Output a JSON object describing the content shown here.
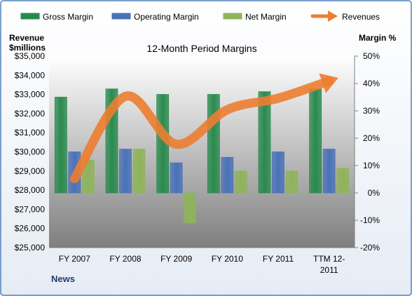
{
  "chart_data": {
    "type": "bar",
    "title": "12-Month Period Margins",
    "footer_label": "News",
    "categories": [
      "FY 2007",
      "FY 2008",
      "FY 2009",
      "FY 2010",
      "FY 2011",
      "TTM 12-2011"
    ],
    "category_lines": [
      [
        "FY 2007"
      ],
      [
        "FY 2008"
      ],
      [
        "FY 2009"
      ],
      [
        "FY 2010"
      ],
      [
        "FY 2011"
      ],
      [
        "TTM 12-",
        "2011"
      ]
    ],
    "y_left": {
      "label_lines": [
        "Revenue",
        "$millions"
      ],
      "range": [
        25000,
        35000
      ],
      "ticks": [
        {
          "value": 25000,
          "label": "$25,000"
        },
        {
          "value": 26000,
          "label": "$26,000"
        },
        {
          "value": 27000,
          "label": "$27,000"
        },
        {
          "value": 28000,
          "label": "$28,000"
        },
        {
          "value": 29000,
          "label": "$29,000"
        },
        {
          "value": 30000,
          "label": "$30,000"
        },
        {
          "value": 31000,
          "label": "$31,000"
        },
        {
          "value": 32000,
          "label": "$32,000"
        },
        {
          "value": 33000,
          "label": "$33,000"
        },
        {
          "value": 34000,
          "label": "$34,000"
        },
        {
          "value": 35000,
          "label": "$35,000"
        }
      ]
    },
    "y_right": {
      "label": "Margin %",
      "range": [
        -20,
        50
      ],
      "ticks": [
        {
          "value": -20,
          "label": "-20%"
        },
        {
          "value": -10,
          "label": "-10%"
        },
        {
          "value": 0,
          "label": "0%"
        },
        {
          "value": 10,
          "label": "10%"
        },
        {
          "value": 20,
          "label": "20%"
        },
        {
          "value": 30,
          "label": "30%"
        },
        {
          "value": 40,
          "label": "40%"
        },
        {
          "value": 50,
          "label": "50%"
        }
      ]
    },
    "series": [
      {
        "name": "Gross Margin",
        "axis": "right",
        "color": "#2a8a4e",
        "values": [
          35,
          38,
          36,
          36,
          37,
          38
        ]
      },
      {
        "name": "Operating Margin",
        "axis": "right",
        "color": "#4a72b8",
        "values": [
          15,
          16,
          11,
          13,
          15,
          16
        ]
      },
      {
        "name": "Net Margin",
        "axis": "right",
        "color": "#8eb45a",
        "values": [
          12,
          16,
          -11,
          8,
          8,
          9
        ]
      }
    ],
    "line_series": {
      "name": "Revenues",
      "axis": "left",
      "color": "#ed7d31",
      "values": [
        28600,
        32900,
        30400,
        32200,
        32800,
        33700
      ]
    },
    "legend": {
      "position": "top"
    },
    "grid": false,
    "background": {
      "plot_top": "#ffffff",
      "plot_bottom": "#7f7f7f",
      "border": "#4f81bd"
    }
  }
}
